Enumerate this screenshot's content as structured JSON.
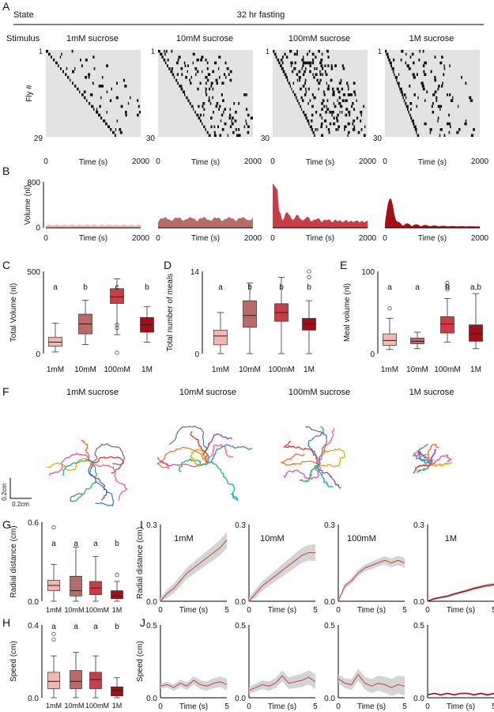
{
  "figure": {
    "panel_letters": [
      "A",
      "B",
      "C",
      "D",
      "E",
      "F",
      "G",
      "H",
      "I",
      "J"
    ],
    "state_label": "State",
    "fasting_label": "32 hr fasting",
    "stimulus_label": "Stimulus",
    "stimuli": [
      "1mM sucrose",
      "10mM sucrose",
      "100mM sucrose",
      "1M sucrose"
    ],
    "conditions_short": [
      "1mM",
      "10mM",
      "100mM",
      "1M"
    ],
    "colors": {
      "c1mM": "#f4b6ae",
      "c10mM": "#b86c6a",
      "c100mM": "#c93e45",
      "c1M": "#a40f16",
      "raster_bg": "#e3e3e3",
      "band": "#cfcfcf",
      "line": "#c0454a"
    }
  },
  "panelA": {
    "ylabel": "Fly #",
    "xlabel": "Time (s)",
    "y_top_label": "1",
    "fly_counts": [
      "29",
      "30",
      "30",
      "30"
    ],
    "x_ticks": [
      "0",
      "2000"
    ]
  },
  "panelB": {
    "ylabel": "Volume (nl)",
    "xlabel": "Time (s)",
    "y_ticks": [
      "0",
      "800"
    ],
    "x_ticks": [
      "0",
      "2000"
    ]
  },
  "panelF": {
    "scale_y": "0.2cm",
    "scale_x": "0.2cm",
    "trajectory_colors": [
      "#e07b39",
      "#8e44ad",
      "#e0529c",
      "#3a7ec8",
      "#2eaa6e",
      "#d63a2c",
      "#777777",
      "#e6a800",
      "#1aa8a8",
      "#f06292"
    ]
  },
  "chart_data": [
    {
      "id": "C",
      "type": "box",
      "title": "",
      "ylabel": "Total Volume (nl)",
      "ylim": [
        0,
        500
      ],
      "y_ticks": [
        "0",
        "500"
      ],
      "categories": [
        "1mM",
        "10mM",
        "100mM",
        "1M"
      ],
      "letters": [
        "a",
        "b",
        "c",
        "b"
      ],
      "boxes": [
        {
          "min": 10,
          "q1": 45,
          "median": 70,
          "q3": 100,
          "max": 185,
          "outliers": []
        },
        {
          "min": 55,
          "q1": 120,
          "median": 180,
          "q3": 240,
          "max": 325,
          "outliers": []
        },
        {
          "min": 115,
          "q1": 305,
          "median": 345,
          "q3": 395,
          "max": 455,
          "outliers": [
            155,
            175,
            5
          ]
        },
        {
          "min": 70,
          "q1": 130,
          "median": 175,
          "q3": 220,
          "max": 285,
          "outliers": []
        }
      ]
    },
    {
      "id": "D",
      "type": "box",
      "title": "",
      "ylabel": "Total number of meals",
      "ylim": [
        0,
        14
      ],
      "y_ticks": [
        "0",
        "14"
      ],
      "categories": [
        "1mM",
        "10mM",
        "100mM",
        "1M"
      ],
      "letters": [
        "a",
        "b",
        "b",
        "b"
      ],
      "boxes": [
        {
          "min": 0,
          "q1": 1.5,
          "median": 3,
          "q3": 4,
          "max": 7,
          "outliers": []
        },
        {
          "min": 0,
          "q1": 4.5,
          "median": 6.5,
          "q3": 9,
          "max": 12,
          "outliers": []
        },
        {
          "min": 0,
          "q1": 5.5,
          "median": 7,
          "q3": 8.5,
          "max": 13,
          "outliers": []
        },
        {
          "min": 0,
          "q1": 4,
          "median": 5,
          "q3": 6,
          "max": 9,
          "outliers": [
            13,
            14
          ]
        }
      ]
    },
    {
      "id": "E",
      "type": "box",
      "title": "",
      "ylabel": "Meal volume (nl)",
      "ylim": [
        0,
        100
      ],
      "y_ticks": [
        "0",
        "100"
      ],
      "categories": [
        "1mM",
        "10mM",
        "100mM",
        "1M"
      ],
      "letters": [
        "a",
        "a",
        "b",
        "a,b"
      ],
      "boxes": [
        {
          "min": 5,
          "q1": 10,
          "median": 16,
          "q3": 24,
          "max": 43,
          "outliers": [
            55
          ]
        },
        {
          "min": 6,
          "q1": 12,
          "median": 15,
          "q3": 19,
          "max": 26,
          "outliers": []
        },
        {
          "min": 14,
          "q1": 25,
          "median": 36,
          "q3": 45,
          "max": 67,
          "outliers": [
            78,
            82,
            86
          ]
        },
        {
          "min": 6,
          "q1": 15,
          "median": 24,
          "q3": 35,
          "max": 73,
          "outliers": []
        }
      ]
    },
    {
      "id": "G",
      "type": "box",
      "title": "",
      "ylabel": "Radial distance (cm)",
      "ylim": [
        0,
        0.6
      ],
      "y_ticks": [
        "0.0",
        "0.6"
      ],
      "categories": [
        "1mM",
        "10mM",
        "100mM",
        "1M"
      ],
      "letters": [
        "a",
        "a",
        "a",
        "b"
      ],
      "boxes": [
        {
          "min": 0.0,
          "q1": 0.08,
          "median": 0.12,
          "q3": 0.16,
          "max": 0.28,
          "outliers": [
            0.56
          ]
        },
        {
          "min": 0.0,
          "q1": 0.04,
          "median": 0.08,
          "q3": 0.19,
          "max": 0.41,
          "outliers": []
        },
        {
          "min": 0.0,
          "q1": 0.05,
          "median": 0.1,
          "q3": 0.15,
          "max": 0.34,
          "outliers": []
        },
        {
          "min": 0.0,
          "q1": 0.02,
          "median": 0.04,
          "q3": 0.08,
          "max": 0.15,
          "outliers": [
            0.2
          ]
        }
      ]
    },
    {
      "id": "H",
      "type": "box",
      "title": "",
      "ylabel": "Speed (cm)",
      "ylim": [
        0,
        0.4
      ],
      "y_ticks": [
        "0.0",
        "0.4"
      ],
      "categories": [
        "1mM",
        "10mM",
        "100mM",
        "1M"
      ],
      "letters": [
        "a",
        "a",
        "a",
        "b"
      ],
      "boxes": [
        {
          "min": 0.0,
          "q1": 0.05,
          "median": 0.09,
          "q3": 0.14,
          "max": 0.23,
          "outliers": [
            0.32,
            0.35
          ]
        },
        {
          "min": 0.0,
          "q1": 0.05,
          "median": 0.09,
          "q3": 0.15,
          "max": 0.25,
          "outliers": []
        },
        {
          "min": 0.0,
          "q1": 0.05,
          "median": 0.1,
          "q3": 0.14,
          "max": 0.23,
          "outliers": []
        },
        {
          "min": 0.0,
          "q1": 0.01,
          "median": 0.04,
          "q3": 0.06,
          "max": 0.11,
          "outliers": []
        }
      ]
    },
    {
      "id": "I",
      "type": "line",
      "ylabel": "Radial distance (cm)",
      "xlabel": "Time (s)",
      "ylim": [
        0,
        0.3
      ],
      "y_ticks": [
        "0.0",
        "0.3"
      ],
      "x_ticks": [
        "0",
        "5"
      ],
      "series": [
        {
          "name": "1mM",
          "x": [
            0,
            0.5,
            1,
            1.5,
            2,
            2.5,
            3,
            3.5,
            4,
            4.5,
            5
          ],
          "values": [
            0.0,
            0.03,
            0.05,
            0.08,
            0.11,
            0.13,
            0.15,
            0.17,
            0.19,
            0.21,
            0.24
          ],
          "spread": 0.025
        },
        {
          "name": "10mM",
          "x": [
            0,
            0.5,
            1,
            1.5,
            2,
            2.5,
            3,
            3.5,
            4,
            4.5,
            5
          ],
          "values": [
            0.0,
            0.03,
            0.06,
            0.08,
            0.1,
            0.12,
            0.14,
            0.16,
            0.18,
            0.19,
            0.19
          ],
          "spread": 0.025
        },
        {
          "name": "100mM",
          "x": [
            0,
            0.5,
            1,
            1.5,
            2,
            2.5,
            3,
            3.5,
            4,
            4.5,
            5
          ],
          "values": [
            0.0,
            0.06,
            0.08,
            0.11,
            0.13,
            0.14,
            0.15,
            0.16,
            0.15,
            0.16,
            0.15
          ],
          "spread": 0.015
        },
        {
          "name": "1M",
          "x": [
            0,
            0.5,
            1,
            1.5,
            2,
            2.5,
            3,
            3.5,
            4,
            4.5,
            5
          ],
          "values": [
            0.0,
            0.01,
            0.015,
            0.02,
            0.028,
            0.035,
            0.042,
            0.05,
            0.056,
            0.062,
            0.065
          ],
          "spread": 0.006
        }
      ]
    },
    {
      "id": "J",
      "type": "line",
      "ylabel": "Speed (cm)",
      "xlabel": "Time (s)",
      "ylim": [
        0,
        0.5
      ],
      "y_ticks": [
        "0.0",
        "0.5"
      ],
      "x_ticks": [
        "0",
        "5"
      ],
      "series": [
        {
          "name": "1mM",
          "x": [
            0,
            0.5,
            1,
            1.5,
            2,
            2.5,
            3,
            3.5,
            4,
            4.5,
            5
          ],
          "values": [
            0.08,
            0.09,
            0.07,
            0.1,
            0.08,
            0.12,
            0.09,
            0.08,
            0.1,
            0.11,
            0.09
          ],
          "spread": 0.03
        },
        {
          "name": "10mM",
          "x": [
            0,
            0.5,
            1,
            1.5,
            2,
            2.5,
            3,
            3.5,
            4,
            4.5,
            5
          ],
          "values": [
            0.05,
            0.07,
            0.09,
            0.08,
            0.1,
            0.15,
            0.1,
            0.11,
            0.12,
            0.14,
            0.11
          ],
          "spread": 0.04
        },
        {
          "name": "100mM",
          "x": [
            0,
            0.5,
            1,
            1.5,
            2,
            2.5,
            3,
            3.5,
            4,
            4.5,
            5
          ],
          "values": [
            0.13,
            0.1,
            0.09,
            0.16,
            0.1,
            0.08,
            0.1,
            0.09,
            0.07,
            0.09,
            0.08
          ],
          "spread": 0.05
        },
        {
          "name": "1M",
          "x": [
            0,
            0.5,
            1,
            1.5,
            2,
            2.5,
            3,
            3.5,
            4,
            4.5,
            5
          ],
          "values": [
            0.02,
            0.03,
            0.02,
            0.03,
            0.02,
            0.03,
            0.03,
            0.02,
            0.03,
            0.02,
            0.03
          ],
          "spread": 0.006
        }
      ]
    }
  ]
}
